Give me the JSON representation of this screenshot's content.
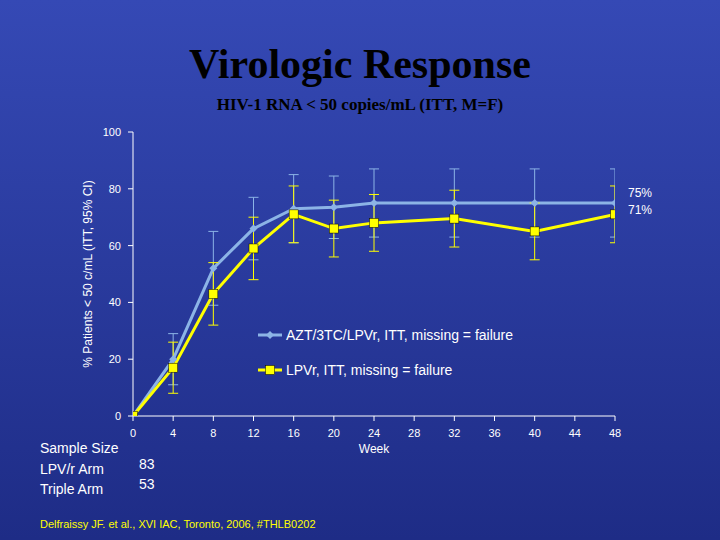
{
  "chart_data": {
    "type": "line",
    "title": "Virologic Response",
    "subtitle": "HIV-1 RNA < 50 copies/mL (ITT, M=F)",
    "x_label": "Week",
    "y_label": "% Patients < 50 c/mL (ITT, 95% CI)",
    "x": [
      0,
      4,
      8,
      12,
      16,
      20,
      24,
      32,
      40,
      48
    ],
    "series": [
      {
        "name": "AZT/3TC/LPVr, ITT, missing = failure",
        "color": "#8cb4e6",
        "marker": "diamond",
        "line_style": "solid",
        "values": [
          0,
          20,
          52,
          66,
          73,
          73.5,
          75,
          75,
          75,
          75
        ],
        "errors": [
          0,
          9,
          13,
          11,
          12,
          11,
          12,
          12,
          12,
          12
        ]
      },
      {
        "name": "LPVr, ITT, missing = failure",
        "color": "#ffff00",
        "marker": "square",
        "line_style": "solid",
        "values": [
          0,
          17,
          43,
          59,
          71,
          66,
          68,
          69.5,
          65,
          71
        ],
        "errors": [
          0,
          9,
          11,
          11,
          10,
          10,
          10,
          10,
          10,
          10
        ]
      }
    ],
    "xlim": [
      0,
      48
    ],
    "xticks": [
      0,
      4,
      8,
      12,
      16,
      20,
      24,
      28,
      32,
      36,
      40,
      44,
      48
    ],
    "ylim": [
      0,
      100
    ],
    "yticks": [
      0,
      20,
      40,
      60,
      80,
      100
    ],
    "grid": false,
    "legend": "center",
    "annotations": [
      "75%",
      "71%"
    ]
  },
  "sample_size": {
    "title": "Sample Size",
    "rows": [
      {
        "label": "LPV/r Arm",
        "value": 83
      },
      {
        "label": "Triple Arm",
        "value": 53
      }
    ]
  },
  "source": "Delfraissy JF. et al., XVI IAC, Toronto, 2006, #THLB0202"
}
